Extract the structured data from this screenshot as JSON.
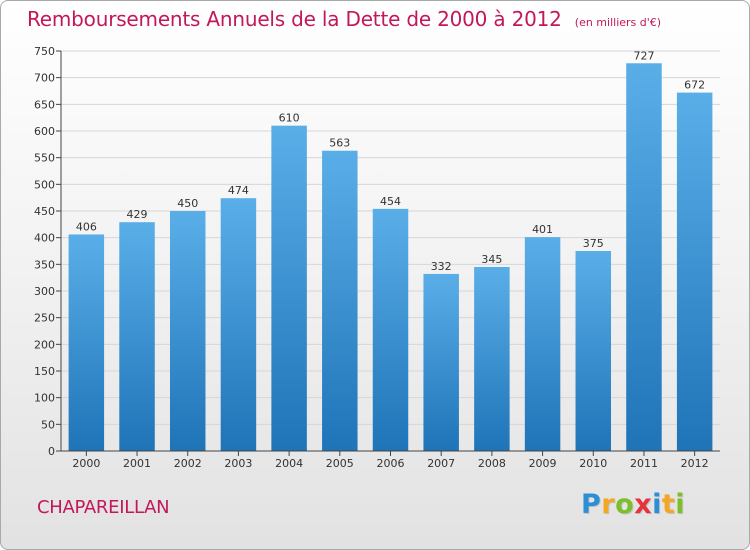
{
  "title": "Remboursements Annuels de la Dette de 2000 à 2012",
  "unit_note": "(en milliers d'€)",
  "commune": "CHAPAREILLAN",
  "logo_text": "Proxiti",
  "colors": {
    "title": "#c2185b",
    "bar_top": "#5aaee8",
    "bar_bottom": "#1f74b8",
    "grid": "#d6d6d6",
    "axis": "#444444"
  },
  "chart_data": {
    "type": "bar",
    "title": "Remboursements Annuels de la Dette de 2000 à 2012",
    "xlabel": "",
    "ylabel": "",
    "categories": [
      "2000",
      "2001",
      "2002",
      "2003",
      "2004",
      "2005",
      "2006",
      "2007",
      "2008",
      "2009",
      "2010",
      "2011",
      "2012"
    ],
    "values": [
      406,
      429,
      450,
      474,
      610,
      563,
      454,
      332,
      345,
      401,
      375,
      727,
      672
    ],
    "ylim": [
      0,
      750
    ],
    "yticks": [
      0,
      50,
      100,
      150,
      200,
      250,
      300,
      350,
      400,
      450,
      500,
      550,
      600,
      650,
      700,
      750
    ],
    "grid": true,
    "data_labels": true
  }
}
